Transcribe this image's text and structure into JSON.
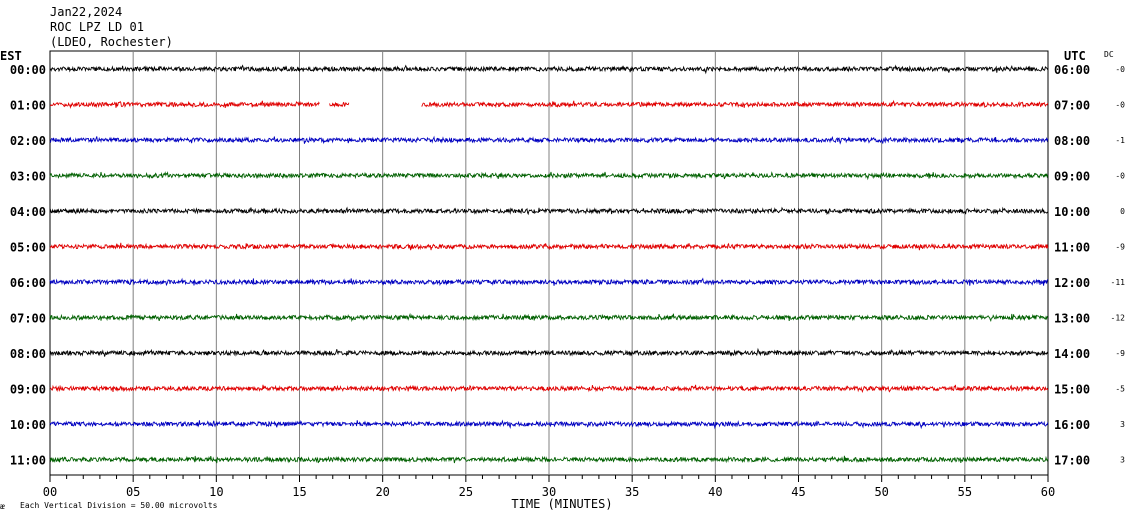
{
  "header": {
    "date": "Jan22,2024",
    "station": "ROC LPZ LD 01",
    "network": "(LDEO, Rochester)"
  },
  "left_zone": "EST",
  "right_zone": "UTC",
  "dc_header": "DC",
  "footer_note": "Each Vertical Division =   50.00 microvolts",
  "corner_mark": "ᴂ",
  "chart_data": {
    "type": "line",
    "title": "",
    "xlabel": "TIME (MINUTES)",
    "ylabel": "",
    "xlim": [
      0,
      60
    ],
    "x_ticks": [
      0,
      5,
      10,
      15,
      20,
      25,
      30,
      35,
      40,
      45,
      50,
      55,
      60
    ],
    "x_tick_labels": [
      "00",
      "05",
      "10",
      "15",
      "20",
      "25",
      "30",
      "35",
      "40",
      "45",
      "50",
      "55",
      "60"
    ],
    "grid": "vertical every 5 minutes",
    "minor_ticks": "every 1 minute",
    "rows": [
      {
        "est": "00:00",
        "utc": "06:00",
        "dc": "-0",
        "color": "#000000"
      },
      {
        "est": "01:00",
        "utc": "07:00",
        "dc": "-0",
        "color": "#e00000",
        "gaps": [
          [
            16.2,
            16.8
          ],
          [
            18.0,
            22.3
          ]
        ]
      },
      {
        "est": "02:00",
        "utc": "08:00",
        "dc": "-1",
        "color": "#0000c0"
      },
      {
        "est": "03:00",
        "utc": "09:00",
        "dc": "-0",
        "color": "#006000"
      },
      {
        "est": "04:00",
        "utc": "10:00",
        "dc": "0",
        "color": "#000000"
      },
      {
        "est": "05:00",
        "utc": "11:00",
        "dc": "-9",
        "color": "#e00000"
      },
      {
        "est": "06:00",
        "utc": "12:00",
        "dc": "-11",
        "color": "#0000c0"
      },
      {
        "est": "07:00",
        "utc": "13:00",
        "dc": "-12",
        "color": "#006000"
      },
      {
        "est": "08:00",
        "utc": "14:00",
        "dc": "-9",
        "color": "#000000"
      },
      {
        "est": "09:00",
        "utc": "15:00",
        "dc": "-5",
        "color": "#e00000"
      },
      {
        "est": "10:00",
        "utc": "16:00",
        "dc": "3",
        "color": "#0000c0"
      },
      {
        "est": "11:00",
        "utc": "17:00",
        "dc": "3",
        "color": "#006000"
      }
    ]
  }
}
